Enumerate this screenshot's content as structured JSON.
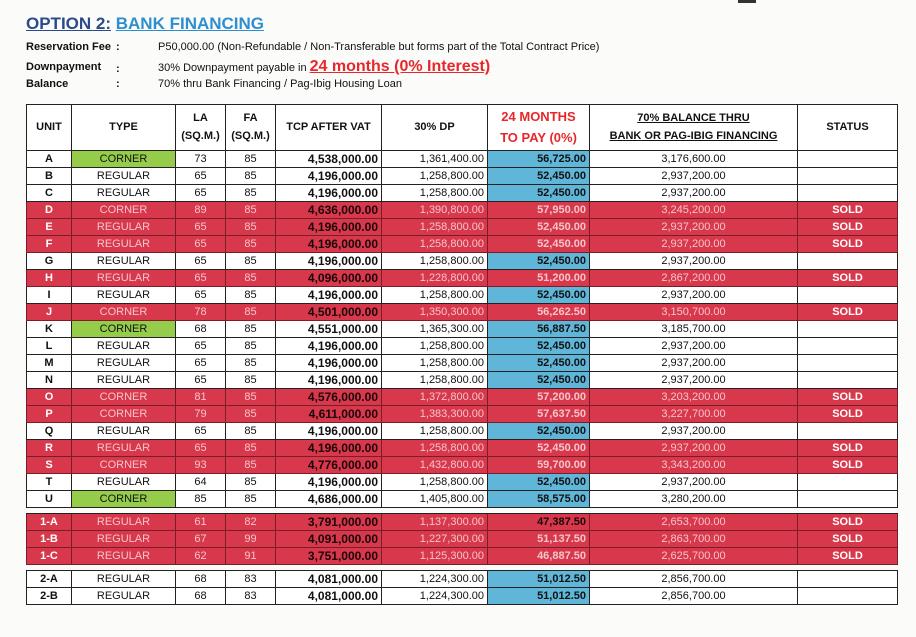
{
  "header": {
    "option_label": "OPTION 2:",
    "option_name": "BANK FINANCING"
  },
  "info": {
    "reservation": {
      "label": "Reservation Fee",
      "value": "P50,000.00 (Non-Refundable / Non-Transferable but forms part of the Total Contract Price)"
    },
    "downpayment": {
      "label": "Downpayment",
      "value_pre": "30% Downpayment payable in ",
      "value_big": "24 months (0% Interest)"
    },
    "balance": {
      "label": "Balance",
      "value": "70% thru Bank Financing / Pag-Ibig Housing Loan"
    },
    "colon": ":"
  },
  "columns": {
    "unit": "UNIT",
    "type": "TYPE",
    "la": [
      "LA",
      "(SQ.M.)"
    ],
    "fa": [
      "FA",
      "(SQ.M.)"
    ],
    "tcp": "TCP AFTER VAT",
    "dp": "30% DP",
    "months": [
      "24 MONTHS",
      "TO PAY (0%)"
    ],
    "balance": [
      "70% BALANCE THRU",
      "BANK OR PAG-IBIG FINANCING"
    ],
    "status": "STATUS"
  },
  "groups": [
    [
      {
        "unit": "A",
        "type": "CORNER",
        "la": "73",
        "fa": "85",
        "tcp": "4,538,000.00",
        "dp": "1,361,400.00",
        "mo": "56,725.00",
        "bal": "3,176,600.00",
        "status": ""
      },
      {
        "unit": "B",
        "type": "REGULAR",
        "la": "65",
        "fa": "85",
        "tcp": "4,196,000.00",
        "dp": "1,258,800.00",
        "mo": "52,450.00",
        "bal": "2,937,200.00",
        "status": ""
      },
      {
        "unit": "C",
        "type": "REGULAR",
        "la": "65",
        "fa": "85",
        "tcp": "4,196,000.00",
        "dp": "1,258,800.00",
        "mo": "52,450.00",
        "bal": "2,937,200.00",
        "status": ""
      },
      {
        "unit": "D",
        "type": "CORNER",
        "la": "89",
        "fa": "85",
        "tcp": "4,636,000.00",
        "dp": "1,390,800.00",
        "mo": "57,950.00",
        "bal": "3,245,200.00",
        "status": "SOLD"
      },
      {
        "unit": "E",
        "type": "REGULAR",
        "la": "65",
        "fa": "85",
        "tcp": "4,196,000.00",
        "dp": "1,258,800.00",
        "mo": "52,450.00",
        "bal": "2,937,200.00",
        "status": "SOLD"
      },
      {
        "unit": "F",
        "type": "REGULAR",
        "la": "65",
        "fa": "85",
        "tcp": "4,196,000.00",
        "dp": "1,258,800.00",
        "mo": "52,450.00",
        "bal": "2,937,200.00",
        "status": "SOLD"
      },
      {
        "unit": "G",
        "type": "REGULAR",
        "la": "65",
        "fa": "85",
        "tcp": "4,196,000.00",
        "dp": "1,258,800.00",
        "mo": "52,450.00",
        "bal": "2,937,200.00",
        "status": ""
      },
      {
        "unit": "H",
        "type": "REGULAR",
        "la": "65",
        "fa": "85",
        "tcp": "4,096,000.00",
        "dp": "1,228,800.00",
        "mo": "51,200.00",
        "bal": "2,867,200.00",
        "status": "SOLD"
      },
      {
        "unit": "I",
        "type": "REGULAR",
        "la": "65",
        "fa": "85",
        "tcp": "4,196,000.00",
        "dp": "1,258,800.00",
        "mo": "52,450.00",
        "bal": "2,937,200.00",
        "status": ""
      },
      {
        "unit": "J",
        "type": "CORNER",
        "la": "78",
        "fa": "85",
        "tcp": "4,501,000.00",
        "dp": "1,350,300.00",
        "mo": "56,262.50",
        "bal": "3,150,700.00",
        "status": "SOLD"
      },
      {
        "unit": "K",
        "type": "CORNER",
        "la": "68",
        "fa": "85",
        "tcp": "4,551,000.00",
        "dp": "1,365,300.00",
        "mo": "56,887.50",
        "bal": "3,185,700.00",
        "status": ""
      },
      {
        "unit": "L",
        "type": "REGULAR",
        "la": "65",
        "fa": "85",
        "tcp": "4,196,000.00",
        "dp": "1,258,800.00",
        "mo": "52,450.00",
        "bal": "2,937,200.00",
        "status": ""
      },
      {
        "unit": "M",
        "type": "REGULAR",
        "la": "65",
        "fa": "85",
        "tcp": "4,196,000.00",
        "dp": "1,258,800.00",
        "mo": "52,450.00",
        "bal": "2,937,200.00",
        "status": ""
      },
      {
        "unit": "N",
        "type": "REGULAR",
        "la": "65",
        "fa": "85",
        "tcp": "4,196,000.00",
        "dp": "1,258,800.00",
        "mo": "52,450.00",
        "bal": "2,937,200.00",
        "status": ""
      },
      {
        "unit": "O",
        "type": "CORNER",
        "la": "81",
        "fa": "85",
        "tcp": "4,576,000.00",
        "dp": "1,372,800.00",
        "mo": "57,200.00",
        "bal": "3,203,200.00",
        "status": "SOLD"
      },
      {
        "unit": "P",
        "type": "CORNER",
        "la": "79",
        "fa": "85",
        "tcp": "4,611,000.00",
        "dp": "1,383,300.00",
        "mo": "57,637.50",
        "bal": "3,227,700.00",
        "status": "SOLD"
      },
      {
        "unit": "Q",
        "type": "REGULAR",
        "la": "65",
        "fa": "85",
        "tcp": "4,196,000.00",
        "dp": "1,258,800.00",
        "mo": "52,450.00",
        "bal": "2,937,200.00",
        "status": ""
      },
      {
        "unit": "R",
        "type": "REGULAR",
        "la": "65",
        "fa": "85",
        "tcp": "4,196,000.00",
        "dp": "1,258,800.00",
        "mo": "52,450.00",
        "bal": "2,937,200.00",
        "status": "SOLD"
      },
      {
        "unit": "S",
        "type": "CORNER",
        "la": "93",
        "fa": "85",
        "tcp": "4,776,000.00",
        "dp": "1,432,800.00",
        "mo": "59,700.00",
        "bal": "3,343,200.00",
        "status": "SOLD"
      },
      {
        "unit": "T",
        "type": "REGULAR",
        "la": "64",
        "fa": "85",
        "tcp": "4,196,000.00",
        "dp": "1,258,800.00",
        "mo": "52,450.00",
        "bal": "2,937,200.00",
        "status": ""
      },
      {
        "unit": "U",
        "type": "CORNER",
        "la": "85",
        "fa": "85",
        "tcp": "4,686,000.00",
        "dp": "1,405,800.00",
        "mo": "58,575.00",
        "bal": "3,280,200.00",
        "status": ""
      }
    ],
    [
      {
        "unit": "1-A",
        "type": "REGULAR",
        "la": "61",
        "fa": "82",
        "tcp": "3,791,000.00",
        "dp": "1,137,300.00",
        "mo": "47,387.50",
        "bal": "2,653,700.00",
        "status": "SOLD"
      },
      {
        "unit": "1-B",
        "type": "REGULAR",
        "la": "67",
        "fa": "99",
        "tcp": "4,091,000.00",
        "dp": "1,227,300.00",
        "mo": "51,137.50",
        "bal": "2,863,700.00",
        "status": "SOLD"
      },
      {
        "unit": "1-C",
        "type": "REGULAR",
        "la": "62",
        "fa": "91",
        "tcp": "3,751,000.00",
        "dp": "1,125,300.00",
        "mo": "46,887.50",
        "bal": "2,625,700.00",
        "status": "SOLD"
      }
    ],
    [
      {
        "unit": "2-A",
        "type": "REGULAR",
        "la": "68",
        "fa": "83",
        "tcp": "4,081,000.00",
        "dp": "1,224,300.00",
        "mo": "51,012.50",
        "bal": "2,856,700.00",
        "status": ""
      },
      {
        "unit": "2-B",
        "type": "REGULAR",
        "la": "68",
        "fa": "83",
        "tcp": "4,081,000.00",
        "dp": "1,224,300.00",
        "mo": "51,012.50",
        "bal": "2,856,700.00",
        "status": ""
      }
    ]
  ],
  "colors": {
    "sold": "#d8384b",
    "corner": "#95cc4a",
    "monthly": "#5fb6d9",
    "accent_red": "#e8272b"
  }
}
